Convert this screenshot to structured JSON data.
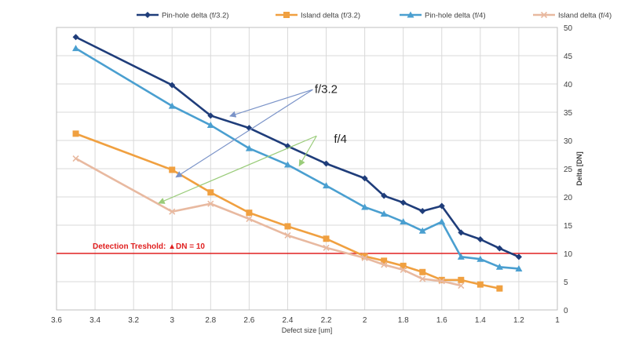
{
  "chart_data": {
    "type": "line",
    "xlabel": "Defect size [um]",
    "ylabel": "Delta [DN]",
    "xlim": [
      3.6,
      1.0
    ],
    "ylim": [
      0,
      50
    ],
    "x_reversed": true,
    "y_axis_side": "right",
    "grid": true,
    "legend_position": "top",
    "xticks": [
      "3.6",
      "3.4",
      "3.2",
      "3",
      "2.8",
      "2.6",
      "2.4",
      "2.2",
      "2",
      "1.8",
      "1.6",
      "1.4",
      "1.2",
      "1"
    ],
    "yticks": [
      "0",
      "5",
      "10",
      "15",
      "20",
      "25",
      "30",
      "35",
      "40",
      "45",
      "50"
    ],
    "series": [
      {
        "name": "Pin-hole delta (f/3.2)",
        "color": "#1f3d7a",
        "marker": "diamond",
        "points": [
          [
            3.5,
            48.3
          ],
          [
            3.0,
            39.8
          ],
          [
            2.8,
            34.4
          ],
          [
            2.6,
            32.2
          ],
          [
            2.4,
            29.0
          ],
          [
            2.2,
            25.9
          ],
          [
            2.0,
            23.3
          ],
          [
            1.9,
            20.2
          ],
          [
            1.8,
            19.0
          ],
          [
            1.7,
            17.5
          ],
          [
            1.6,
            18.4
          ],
          [
            1.5,
            13.7
          ],
          [
            1.4,
            12.5
          ],
          [
            1.3,
            10.9
          ],
          [
            1.2,
            9.4
          ]
        ]
      },
      {
        "name": "Island delta (f/3.2)",
        "color": "#f0a040",
        "marker": "square",
        "points": [
          [
            3.5,
            31.2
          ],
          [
            3.0,
            24.8
          ],
          [
            2.8,
            20.8
          ],
          [
            2.6,
            17.2
          ],
          [
            2.4,
            14.8
          ],
          [
            2.2,
            12.6
          ],
          [
            2.0,
            9.5
          ],
          [
            1.9,
            8.7
          ],
          [
            1.8,
            7.8
          ],
          [
            1.7,
            6.7
          ],
          [
            1.6,
            5.3
          ],
          [
            1.5,
            5.3
          ],
          [
            1.4,
            4.5
          ],
          [
            1.3,
            3.8
          ]
        ]
      },
      {
        "name": "Pin-hole delta (f/4)",
        "color": "#4a9fd0",
        "marker": "triangle",
        "points": [
          [
            3.5,
            46.3
          ],
          [
            3.0,
            36.1
          ],
          [
            2.8,
            32.7
          ],
          [
            2.6,
            28.6
          ],
          [
            2.4,
            25.7
          ],
          [
            2.2,
            22.0
          ],
          [
            2.0,
            18.2
          ],
          [
            1.9,
            17.0
          ],
          [
            1.8,
            15.6
          ],
          [
            1.7,
            14.0
          ],
          [
            1.6,
            15.6
          ],
          [
            1.5,
            9.4
          ],
          [
            1.4,
            9.0
          ],
          [
            1.3,
            7.6
          ],
          [
            1.2,
            7.3
          ]
        ]
      },
      {
        "name": "Island delta (f/4)",
        "color": "#e8b9a0",
        "marker": "x",
        "points": [
          [
            3.5,
            26.8
          ],
          [
            3.0,
            17.4
          ],
          [
            2.8,
            18.8
          ],
          [
            2.6,
            16.1
          ],
          [
            2.4,
            13.2
          ],
          [
            2.2,
            11.0
          ],
          [
            2.0,
            9.2
          ],
          [
            1.9,
            8.0
          ],
          [
            1.8,
            7.1
          ],
          [
            1.7,
            5.5
          ],
          [
            1.6,
            5.1
          ],
          [
            1.5,
            4.3
          ]
        ]
      }
    ],
    "threshold": {
      "value": 10,
      "label": "Detection Treshold: ▲DN = 10",
      "color": "#e02020"
    },
    "annotations": [
      {
        "text": "f/3.2",
        "color": "#7a93c8",
        "text_pos": [
          2.26,
          39.1
        ],
        "arrow_origin": [
          2.27,
          39.0
        ],
        "arrow_targets": [
          [
            2.7,
            34.3
          ],
          [
            2.98,
            23.5
          ]
        ]
      },
      {
        "text": "f/4",
        "color": "#9acc7a",
        "text_pos": [
          2.16,
          30.3
        ],
        "arrow_origin": [
          2.25,
          30.8
        ],
        "arrow_targets": [
          [
            2.34,
            25.5
          ],
          [
            3.07,
            18.9
          ]
        ]
      }
    ]
  }
}
